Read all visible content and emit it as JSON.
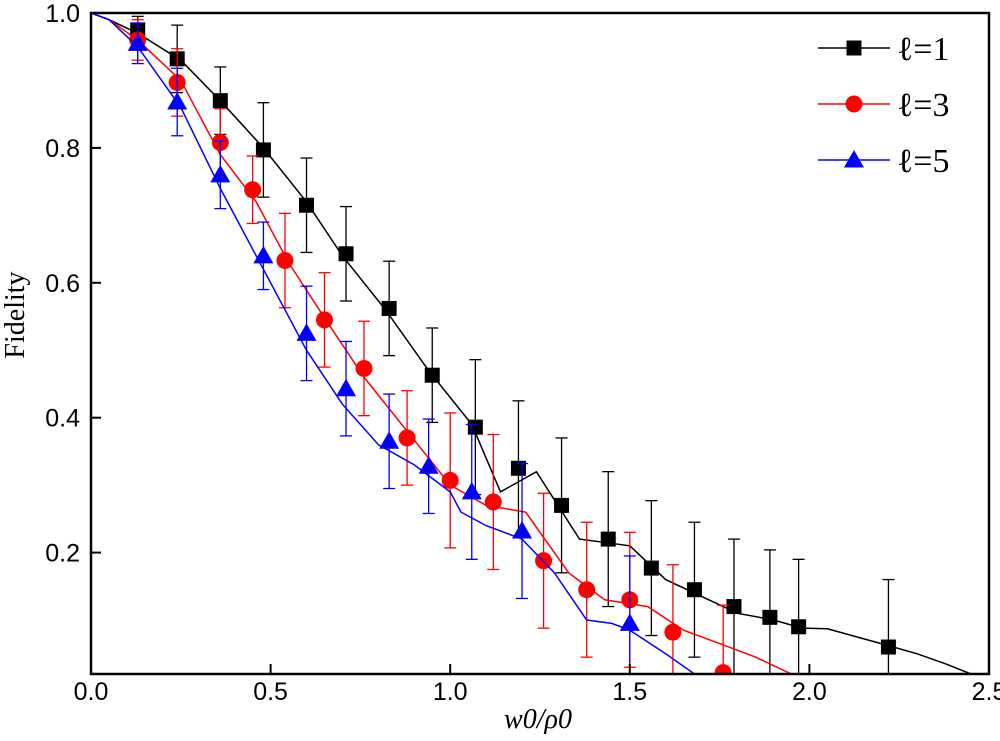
{
  "chart_data": {
    "type": "line",
    "title": "",
    "xlabel": "w0/ρ0",
    "ylabel": "Fidelity",
    "xlim": [
      0.0,
      2.5
    ],
    "ylim": [
      0.02,
      1.0
    ],
    "x_ticks": [
      "0.0",
      "0.5",
      "1.0",
      "1.5",
      "2.0",
      "2.5"
    ],
    "y_ticks": [
      "0.2",
      "0.4",
      "0.6",
      "0.8",
      "1.0"
    ],
    "grid": false,
    "legend_position": "top-right",
    "series": [
      {
        "name": "ℓ=1",
        "color": "#000000",
        "marker": "square",
        "curve": [
          [
            0,
            1.0
          ],
          [
            0.05,
            0.99
          ],
          [
            0.13,
            0.97
          ],
          [
            0.25,
            0.93
          ],
          [
            0.36,
            0.87
          ],
          [
            0.48,
            0.8
          ],
          [
            0.6,
            0.72
          ],
          [
            0.7,
            0.64
          ],
          [
            0.82,
            0.56
          ],
          [
            0.94,
            0.47
          ],
          [
            1.06,
            0.39
          ],
          [
            1.14,
            0.29
          ],
          [
            1.24,
            0.32
          ],
          [
            1.36,
            0.22
          ],
          [
            1.5,
            0.21
          ],
          [
            1.6,
            0.16
          ],
          [
            1.72,
            0.13
          ],
          [
            1.8,
            0.11
          ],
          [
            1.9,
            0.1
          ],
          [
            1.98,
            0.088
          ],
          [
            2.05,
            0.087
          ],
          [
            2.2,
            0.065
          ],
          [
            2.3,
            0.05
          ],
          [
            2.38,
            0.035
          ],
          [
            2.45,
            0.02
          ]
        ],
        "points": [
          {
            "x": 0.13,
            "y": 0.975,
            "err": 0.02
          },
          {
            "x": 0.24,
            "y": 0.932,
            "err": 0.05
          },
          {
            "x": 0.36,
            "y": 0.87,
            "err": 0.05
          },
          {
            "x": 0.48,
            "y": 0.797,
            "err": 0.07
          },
          {
            "x": 0.6,
            "y": 0.715,
            "err": 0.07
          },
          {
            "x": 0.71,
            "y": 0.643,
            "err": 0.07
          },
          {
            "x": 0.83,
            "y": 0.562,
            "err": 0.07
          },
          {
            "x": 0.95,
            "y": 0.463,
            "err": 0.07
          },
          {
            "x": 1.07,
            "y": 0.386,
            "err": 0.1
          },
          {
            "x": 1.19,
            "y": 0.325,
            "err": 0.1
          },
          {
            "x": 1.31,
            "y": 0.27,
            "err": 0.1
          },
          {
            "x": 1.44,
            "y": 0.22,
            "err": 0.1
          },
          {
            "x": 1.56,
            "y": 0.177,
            "err": 0.1
          },
          {
            "x": 1.68,
            "y": 0.145,
            "err": 0.1
          },
          {
            "x": 1.79,
            "y": 0.12,
            "err": 0.1
          },
          {
            "x": 1.89,
            "y": 0.104,
            "err": 0.1
          },
          {
            "x": 1.97,
            "y": 0.09,
            "err": 0.1
          },
          {
            "x": 2.22,
            "y": 0.06,
            "err": 0.1
          }
        ]
      },
      {
        "name": "ℓ=3",
        "color": "#ff0000",
        "marker": "circle",
        "curve": [
          [
            0,
            1.0
          ],
          [
            0.05,
            0.99
          ],
          [
            0.13,
            0.96
          ],
          [
            0.25,
            0.9
          ],
          [
            0.36,
            0.79
          ],
          [
            0.46,
            0.72
          ],
          [
            0.55,
            0.63
          ],
          [
            0.66,
            0.54
          ],
          [
            0.76,
            0.46
          ],
          [
            0.88,
            0.38
          ],
          [
            1.0,
            0.3
          ],
          [
            1.1,
            0.27
          ],
          [
            1.21,
            0.26
          ],
          [
            1.33,
            0.17
          ],
          [
            1.43,
            0.13
          ],
          [
            1.55,
            0.12
          ],
          [
            1.65,
            0.085
          ],
          [
            1.75,
            0.065
          ],
          [
            1.85,
            0.045
          ],
          [
            1.95,
            0.02
          ]
        ],
        "points": [
          {
            "x": 0.13,
            "y": 0.96,
            "err": 0.03
          },
          {
            "x": 0.24,
            "y": 0.897,
            "err": 0.05
          },
          {
            "x": 0.36,
            "y": 0.808,
            "err": 0.05
          },
          {
            "x": 0.45,
            "y": 0.738,
            "err": 0.05
          },
          {
            "x": 0.54,
            "y": 0.633,
            "err": 0.07
          },
          {
            "x": 0.65,
            "y": 0.545,
            "err": 0.07
          },
          {
            "x": 0.76,
            "y": 0.473,
            "err": 0.07
          },
          {
            "x": 0.88,
            "y": 0.37,
            "err": 0.07
          },
          {
            "x": 1.0,
            "y": 0.307,
            "err": 0.1
          },
          {
            "x": 1.12,
            "y": 0.275,
            "err": 0.1
          },
          {
            "x": 1.26,
            "y": 0.188,
            "err": 0.1
          },
          {
            "x": 1.38,
            "y": 0.145,
            "err": 0.1
          },
          {
            "x": 1.5,
            "y": 0.13,
            "err": 0.1
          },
          {
            "x": 1.62,
            "y": 0.082,
            "err": 0.1
          },
          {
            "x": 1.76,
            "y": 0.022,
            "err": 0.1
          }
        ]
      },
      {
        "name": "ℓ=5",
        "color": "#0000ff",
        "marker": "triangle",
        "curve": [
          [
            0,
            1.0
          ],
          [
            0.05,
            0.99
          ],
          [
            0.13,
            0.95
          ],
          [
            0.25,
            0.86
          ],
          [
            0.36,
            0.74
          ],
          [
            0.48,
            0.62
          ],
          [
            0.6,
            0.5
          ],
          [
            0.7,
            0.42
          ],
          [
            0.8,
            0.36
          ],
          [
            0.9,
            0.33
          ],
          [
            1.0,
            0.29
          ],
          [
            1.03,
            0.26
          ],
          [
            1.1,
            0.24
          ],
          [
            1.2,
            0.22
          ],
          [
            1.29,
            0.17
          ],
          [
            1.38,
            0.1
          ],
          [
            1.45,
            0.095
          ],
          [
            1.5,
            0.085
          ],
          [
            1.6,
            0.05
          ],
          [
            1.68,
            0.02
          ]
        ],
        "points": [
          {
            "x": 0.13,
            "y": 0.955,
            "err": 0.03
          },
          {
            "x": 0.24,
            "y": 0.868,
            "err": 0.05
          },
          {
            "x": 0.36,
            "y": 0.76,
            "err": 0.05
          },
          {
            "x": 0.48,
            "y": 0.64,
            "err": 0.05
          },
          {
            "x": 0.6,
            "y": 0.525,
            "err": 0.07
          },
          {
            "x": 0.71,
            "y": 0.443,
            "err": 0.07
          },
          {
            "x": 0.83,
            "y": 0.365,
            "err": 0.07
          },
          {
            "x": 0.94,
            "y": 0.328,
            "err": 0.07
          },
          {
            "x": 1.06,
            "y": 0.29,
            "err": 0.1
          },
          {
            "x": 1.2,
            "y": 0.232,
            "err": 0.1
          },
          {
            "x": 1.5,
            "y": 0.095,
            "err": 0.1
          }
        ]
      }
    ]
  }
}
